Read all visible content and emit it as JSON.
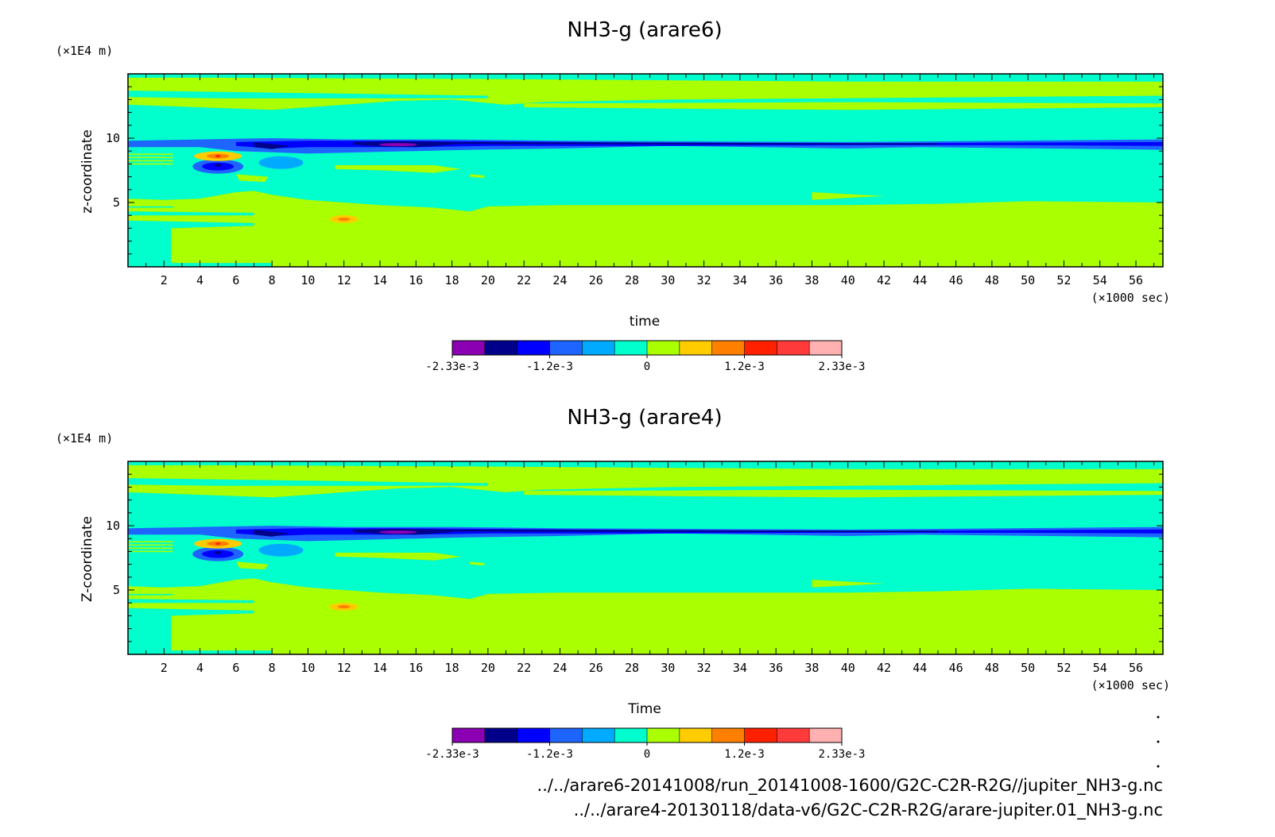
{
  "chart_data": [
    {
      "type": "heatmap",
      "title": "NH3-g (arare6)",
      "xlabel": "time",
      "ylabel": "z-coordinate",
      "x_unit": "(×1000 sec)",
      "y_unit": "(×1E4 m)",
      "xlim": [
        0,
        57.5
      ],
      "ylim": [
        0,
        15
      ],
      "x_ticks": [
        2,
        4,
        6,
        8,
        10,
        12,
        14,
        16,
        18,
        20,
        22,
        24,
        26,
        28,
        30,
        32,
        34,
        36,
        38,
        40,
        42,
        44,
        46,
        48,
        50,
        52,
        54,
        56
      ],
      "y_ticks": [
        5,
        10
      ],
      "colorbar": {
        "colors": [
          "#8b00b3",
          "#00008b",
          "#0000ff",
          "#1e64ff",
          "#00aaff",
          "#00ffcc",
          "#aaff00",
          "#ffcc00",
          "#ff8000",
          "#ff2000",
          "#ff3a3a",
          "#ffb0b0"
        ],
        "tick_labels": [
          "-2.33e-3",
          "-1.2e-3",
          "0",
          "1.2e-3",
          "2.33e-3"
        ],
        "range": [
          -0.00233,
          0.00233
        ]
      }
    },
    {
      "type": "heatmap",
      "title": "NH3-g (arare4)",
      "xlabel": "Time",
      "ylabel": "Z-coordinate",
      "x_unit": "(×1000 sec)",
      "y_unit": "(×1E4 m)",
      "xlim": [
        0,
        57.5
      ],
      "ylim": [
        0,
        15
      ],
      "x_ticks": [
        2,
        4,
        6,
        8,
        10,
        12,
        14,
        16,
        18,
        20,
        22,
        24,
        26,
        28,
        30,
        32,
        34,
        36,
        38,
        40,
        42,
        44,
        46,
        48,
        50,
        52,
        54,
        56
      ],
      "y_ticks": [
        5,
        10
      ],
      "colorbar": {
        "colors": [
          "#8b00b3",
          "#00008b",
          "#0000ff",
          "#1e64ff",
          "#00aaff",
          "#00ffcc",
          "#aaff00",
          "#ffcc00",
          "#ff8000",
          "#ff2000",
          "#ff3a3a",
          "#ffb0b0"
        ],
        "tick_labels": [
          "-2.33e-3",
          "-1.2e-3",
          "0",
          "1.2e-3",
          "2.33e-3"
        ],
        "range": [
          -0.00233,
          0.00233
        ]
      }
    }
  ],
  "footer": {
    "file_paths": [
      "../../arare6-20141008/run_20141008-1600/G2C-C2R-R2G//jupiter_NH3-g.nc",
      "../../arare4-20130118/data-v6/G2C-C2R-R2G/arare-jupiter.01_NH3-g.nc"
    ]
  },
  "colors": {
    "purple": "#8b00b3",
    "navy": "#00008b",
    "blue": "#0000ff",
    "mid_blue": "#1e64ff",
    "light_blue": "#00aaff",
    "cyan": "#00ffcc",
    "lime": "#aaff00",
    "yellow": "#ffcc00",
    "orange": "#ff8000",
    "red": "#ff2000",
    "light_red": "#ff3a3a",
    "pink": "#ffb0b0"
  }
}
